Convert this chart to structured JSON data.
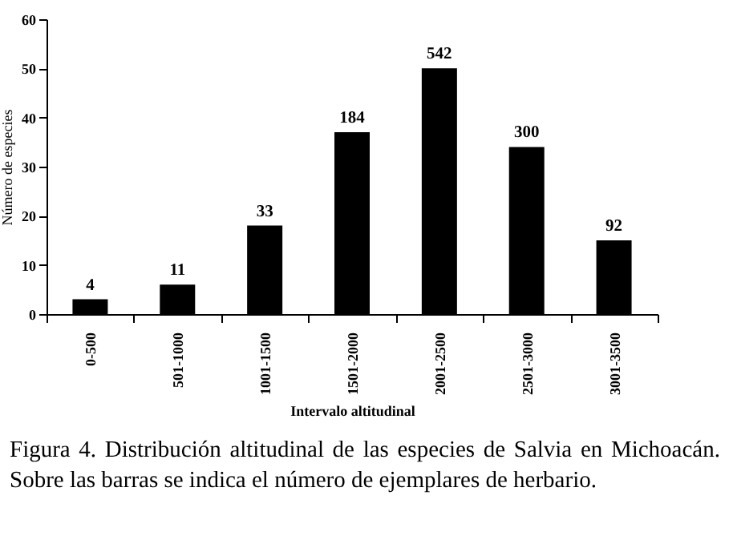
{
  "chart_data": {
    "type": "bar",
    "xlabel": "Intervalo altitudinal",
    "ylabel": "Número de especies",
    "categories": [
      "0-500",
      "501-1000",
      "1001-1500",
      "1501-2000",
      "2001-2500",
      "2501-3000",
      "3001-3500"
    ],
    "values": [
      3,
      6,
      18,
      37,
      50,
      34,
      15
    ],
    "color": "#000000",
    "ylim": [
      0,
      60
    ],
    "yticks": [
      0,
      10,
      20,
      30,
      40,
      50,
      60
    ],
    "grid": false,
    "annotations": [
      {
        "text": "4",
        "x": "0-500",
        "y": 3
      },
      {
        "text": "11",
        "x": "501-1000",
        "y": 6
      },
      {
        "text": "33",
        "x": "1001-1500",
        "y": 18
      },
      {
        "text": "184",
        "x": "1501-2000",
        "y": 37
      },
      {
        "text": "542",
        "x": "2001-2500",
        "y": 50
      },
      {
        "text": "300",
        "x": "2501-3000",
        "y": 34
      },
      {
        "text": "92",
        "x": "3001-3500",
        "y": 15
      },
      "Figura 4. Distribución altitudinal de las especies de Salvia en Michoacán. Sobre las barras se indica el número de ejemplares de herbario."
    ]
  }
}
